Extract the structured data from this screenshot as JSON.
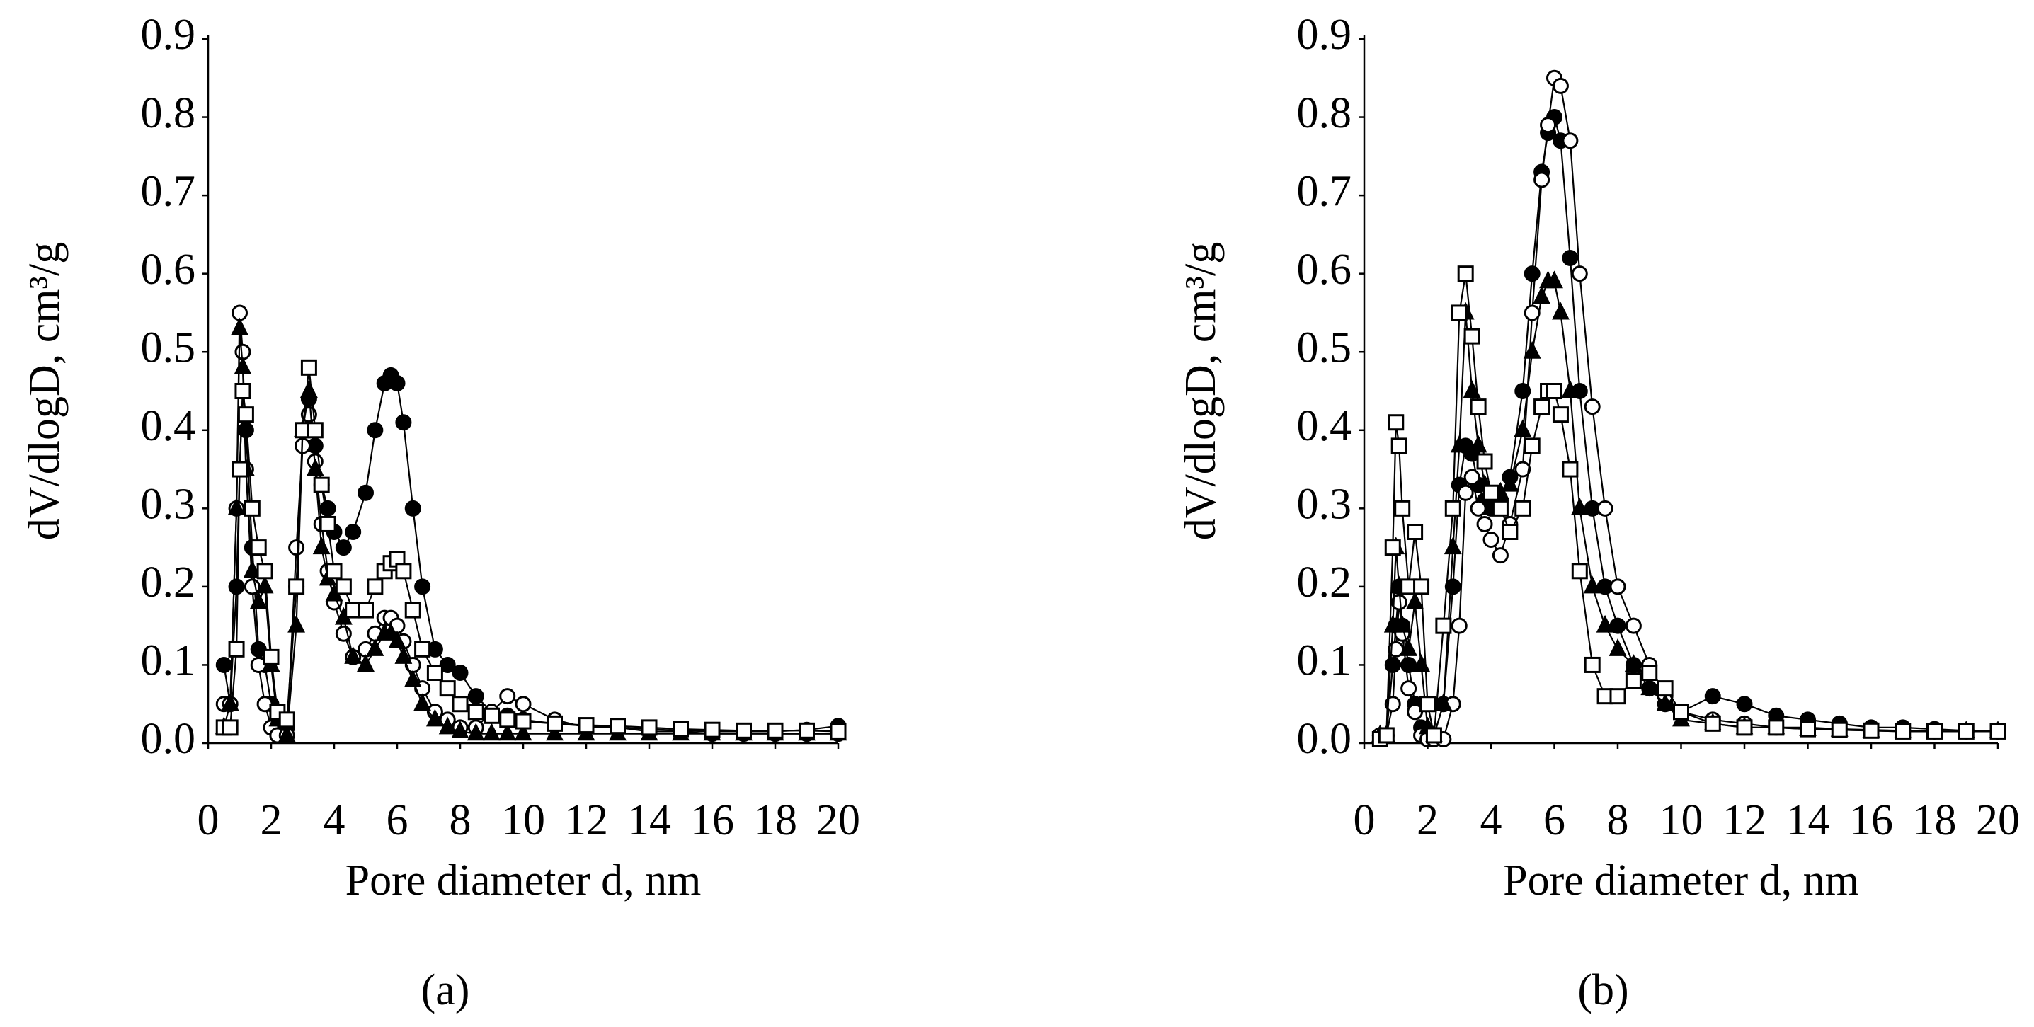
{
  "chart_data": [
    {
      "type": "line",
      "panel_label": "(a)",
      "xlabel": "Pore diameter d, nm",
      "ylabel": "dV/dlogD, cm³/g",
      "xlim": [
        0,
        20
      ],
      "xticks": [
        0,
        2,
        4,
        6,
        8,
        10,
        12,
        14,
        16,
        18,
        20
      ],
      "ylim": [
        0,
        0.9
      ],
      "yticks": [
        {
          "value": 0,
          "label": "0.0"
        },
        0.1,
        0.2,
        0.3,
        0.4,
        0.5,
        0.6,
        0.7,
        0.8,
        0.9
      ],
      "grid": false,
      "x": [
        0.5,
        0.7,
        0.9,
        1.0,
        1.1,
        1.2,
        1.4,
        1.6,
        1.8,
        2.0,
        2.2,
        2.5,
        2.8,
        3.0,
        3.2,
        3.4,
        3.6,
        3.8,
        4.0,
        4.3,
        4.6,
        5.0,
        5.3,
        5.6,
        5.8,
        6.0,
        6.2,
        6.5,
        6.8,
        7.2,
        7.6,
        8.0,
        8.5,
        9.0,
        9.5,
        10,
        11,
        12,
        13,
        14,
        15,
        16,
        17,
        18,
        19,
        20
      ],
      "series": [
        {
          "color": "#000000",
          "marker": "circle-filled",
          "values": [
            0.1,
            0.05,
            0.2,
            0.35,
            0.45,
            0.4,
            0.25,
            0.12,
            0.1,
            0.05,
            0.02,
            0.02,
            0.2,
            0.38,
            0.44,
            0.38,
            0.33,
            0.3,
            0.27,
            0.25,
            0.27,
            0.32,
            0.4,
            0.46,
            0.47,
            0.46,
            0.41,
            0.3,
            0.2,
            0.12,
            0.1,
            0.09,
            0.06,
            0.04,
            0.035,
            0.03,
            0.025,
            0.022,
            0.02,
            0.018,
            0.016,
            0.015,
            0.015,
            0.015,
            0.017,
            0.022
          ]
        },
        {
          "color": "#000000",
          "marker": "circle-open",
          "values": [
            0.05,
            0.05,
            0.3,
            0.55,
            0.5,
            0.35,
            0.2,
            0.1,
            0.05,
            0.02,
            0.01,
            0.01,
            0.25,
            0.38,
            0.42,
            0.36,
            0.28,
            0.22,
            0.18,
            0.14,
            0.11,
            0.12,
            0.14,
            0.16,
            0.16,
            0.15,
            0.13,
            0.1,
            0.07,
            0.04,
            0.03,
            0.02,
            0.02,
            0.04,
            0.06,
            0.05,
            0.03,
            0.02,
            0.02,
            0.015,
            0.015,
            0.012,
            0.012,
            0.012,
            0.012,
            0.012
          ]
        },
        {
          "color": "#000000",
          "marker": "triangle",
          "values": [
            0.02,
            0.05,
            0.3,
            0.53,
            0.48,
            0.35,
            0.22,
            0.18,
            0.2,
            0.1,
            0.03,
            0.01,
            0.15,
            0.4,
            0.45,
            0.35,
            0.25,
            0.21,
            0.19,
            0.16,
            0.11,
            0.1,
            0.12,
            0.14,
            0.14,
            0.13,
            0.11,
            0.08,
            0.05,
            0.03,
            0.02,
            0.015,
            0.012,
            0.012,
            0.012,
            0.012,
            0.012,
            0.012,
            0.012,
            0.012,
            0.012,
            0.012,
            0.012,
            0.012,
            0.012,
            0.012
          ]
        },
        {
          "color": "#000000",
          "marker": "square-open",
          "values": [
            0.02,
            0.02,
            0.12,
            0.35,
            0.45,
            0.42,
            0.3,
            0.25,
            0.22,
            0.11,
            0.04,
            0.03,
            0.2,
            0.4,
            0.48,
            0.4,
            0.33,
            0.28,
            0.22,
            0.2,
            0.17,
            0.17,
            0.2,
            0.22,
            0.23,
            0.235,
            0.22,
            0.17,
            0.12,
            0.09,
            0.07,
            0.05,
            0.04,
            0.035,
            0.03,
            0.028,
            0.025,
            0.023,
            0.022,
            0.02,
            0.018,
            0.017,
            0.016,
            0.016,
            0.016,
            0.015
          ]
        }
      ]
    },
    {
      "type": "line",
      "panel_label": "(b)",
      "xlabel": "Pore diameter d, nm",
      "ylabel": "dV/dlogD, cm³/g",
      "xlim": [
        0,
        20
      ],
      "xticks": [
        0,
        2,
        4,
        6,
        8,
        10,
        12,
        14,
        16,
        18,
        20
      ],
      "ylim": [
        0,
        0.9
      ],
      "yticks": [
        {
          "value": 0,
          "label": "0.0"
        },
        0.1,
        0.2,
        0.3,
        0.4,
        0.5,
        0.6,
        0.7,
        0.8,
        0.9
      ],
      "grid": false,
      "x": [
        0.5,
        0.7,
        0.9,
        1.0,
        1.1,
        1.2,
        1.4,
        1.6,
        1.8,
        2.0,
        2.2,
        2.5,
        2.8,
        3.0,
        3.2,
        3.4,
        3.6,
        3.8,
        4.0,
        4.3,
        4.6,
        5.0,
        5.3,
        5.6,
        5.8,
        6.0,
        6.2,
        6.5,
        6.8,
        7.2,
        7.6,
        8.0,
        8.5,
        9.0,
        9.5,
        10,
        11,
        12,
        13,
        14,
        15,
        16,
        17,
        18,
        19,
        20
      ],
      "series": [
        {
          "color": "#000000",
          "marker": "circle-filled",
          "values": [
            0.01,
            0.01,
            0.1,
            0.15,
            0.2,
            0.15,
            0.1,
            0.05,
            0.02,
            0.01,
            0.01,
            0.05,
            0.2,
            0.33,
            0.38,
            0.37,
            0.33,
            0.31,
            0.3,
            0.31,
            0.34,
            0.45,
            0.6,
            0.73,
            0.78,
            0.8,
            0.77,
            0.62,
            0.45,
            0.3,
            0.2,
            0.15,
            0.1,
            0.07,
            0.05,
            0.04,
            0.06,
            0.05,
            0.035,
            0.03,
            0.025,
            0.02,
            0.02,
            0.018,
            0.016,
            0.015
          ]
        },
        {
          "color": "#000000",
          "marker": "circle-open",
          "values": [
            0.01,
            0.01,
            0.05,
            0.12,
            0.18,
            0.14,
            0.07,
            0.04,
            0.01,
            0.005,
            0.005,
            0.005,
            0.05,
            0.15,
            0.32,
            0.34,
            0.3,
            0.28,
            0.26,
            0.24,
            0.28,
            0.35,
            0.55,
            0.72,
            0.79,
            0.85,
            0.84,
            0.77,
            0.6,
            0.43,
            0.3,
            0.2,
            0.15,
            0.1,
            0.06,
            0.04,
            0.03,
            0.025,
            0.02,
            0.02,
            0.018,
            0.017,
            0.016,
            0.015,
            0.015,
            0.015
          ]
        },
        {
          "color": "#000000",
          "marker": "triangle",
          "values": [
            0.01,
            0.01,
            0.15,
            0.25,
            0.2,
            0.15,
            0.12,
            0.18,
            0.1,
            0.02,
            0.01,
            0.05,
            0.25,
            0.38,
            0.55,
            0.45,
            0.38,
            0.33,
            0.3,
            0.32,
            0.33,
            0.4,
            0.5,
            0.57,
            0.59,
            0.59,
            0.55,
            0.45,
            0.3,
            0.2,
            0.15,
            0.12,
            0.1,
            0.07,
            0.05,
            0.03,
            0.025,
            0.02,
            0.02,
            0.018,
            0.017,
            0.016,
            0.015,
            0.015,
            0.015,
            0.015
          ]
        },
        {
          "color": "#000000",
          "marker": "square-open",
          "values": [
            0.005,
            0.01,
            0.25,
            0.41,
            0.38,
            0.3,
            0.2,
            0.27,
            0.2,
            0.05,
            0.01,
            0.15,
            0.3,
            0.55,
            0.6,
            0.52,
            0.43,
            0.36,
            0.32,
            0.3,
            0.27,
            0.3,
            0.38,
            0.43,
            0.45,
            0.45,
            0.42,
            0.35,
            0.22,
            0.1,
            0.06,
            0.06,
            0.08,
            0.09,
            0.07,
            0.04,
            0.025,
            0.02,
            0.02,
            0.018,
            0.017,
            0.016,
            0.015,
            0.015,
            0.015,
            0.015
          ]
        }
      ]
    }
  ]
}
